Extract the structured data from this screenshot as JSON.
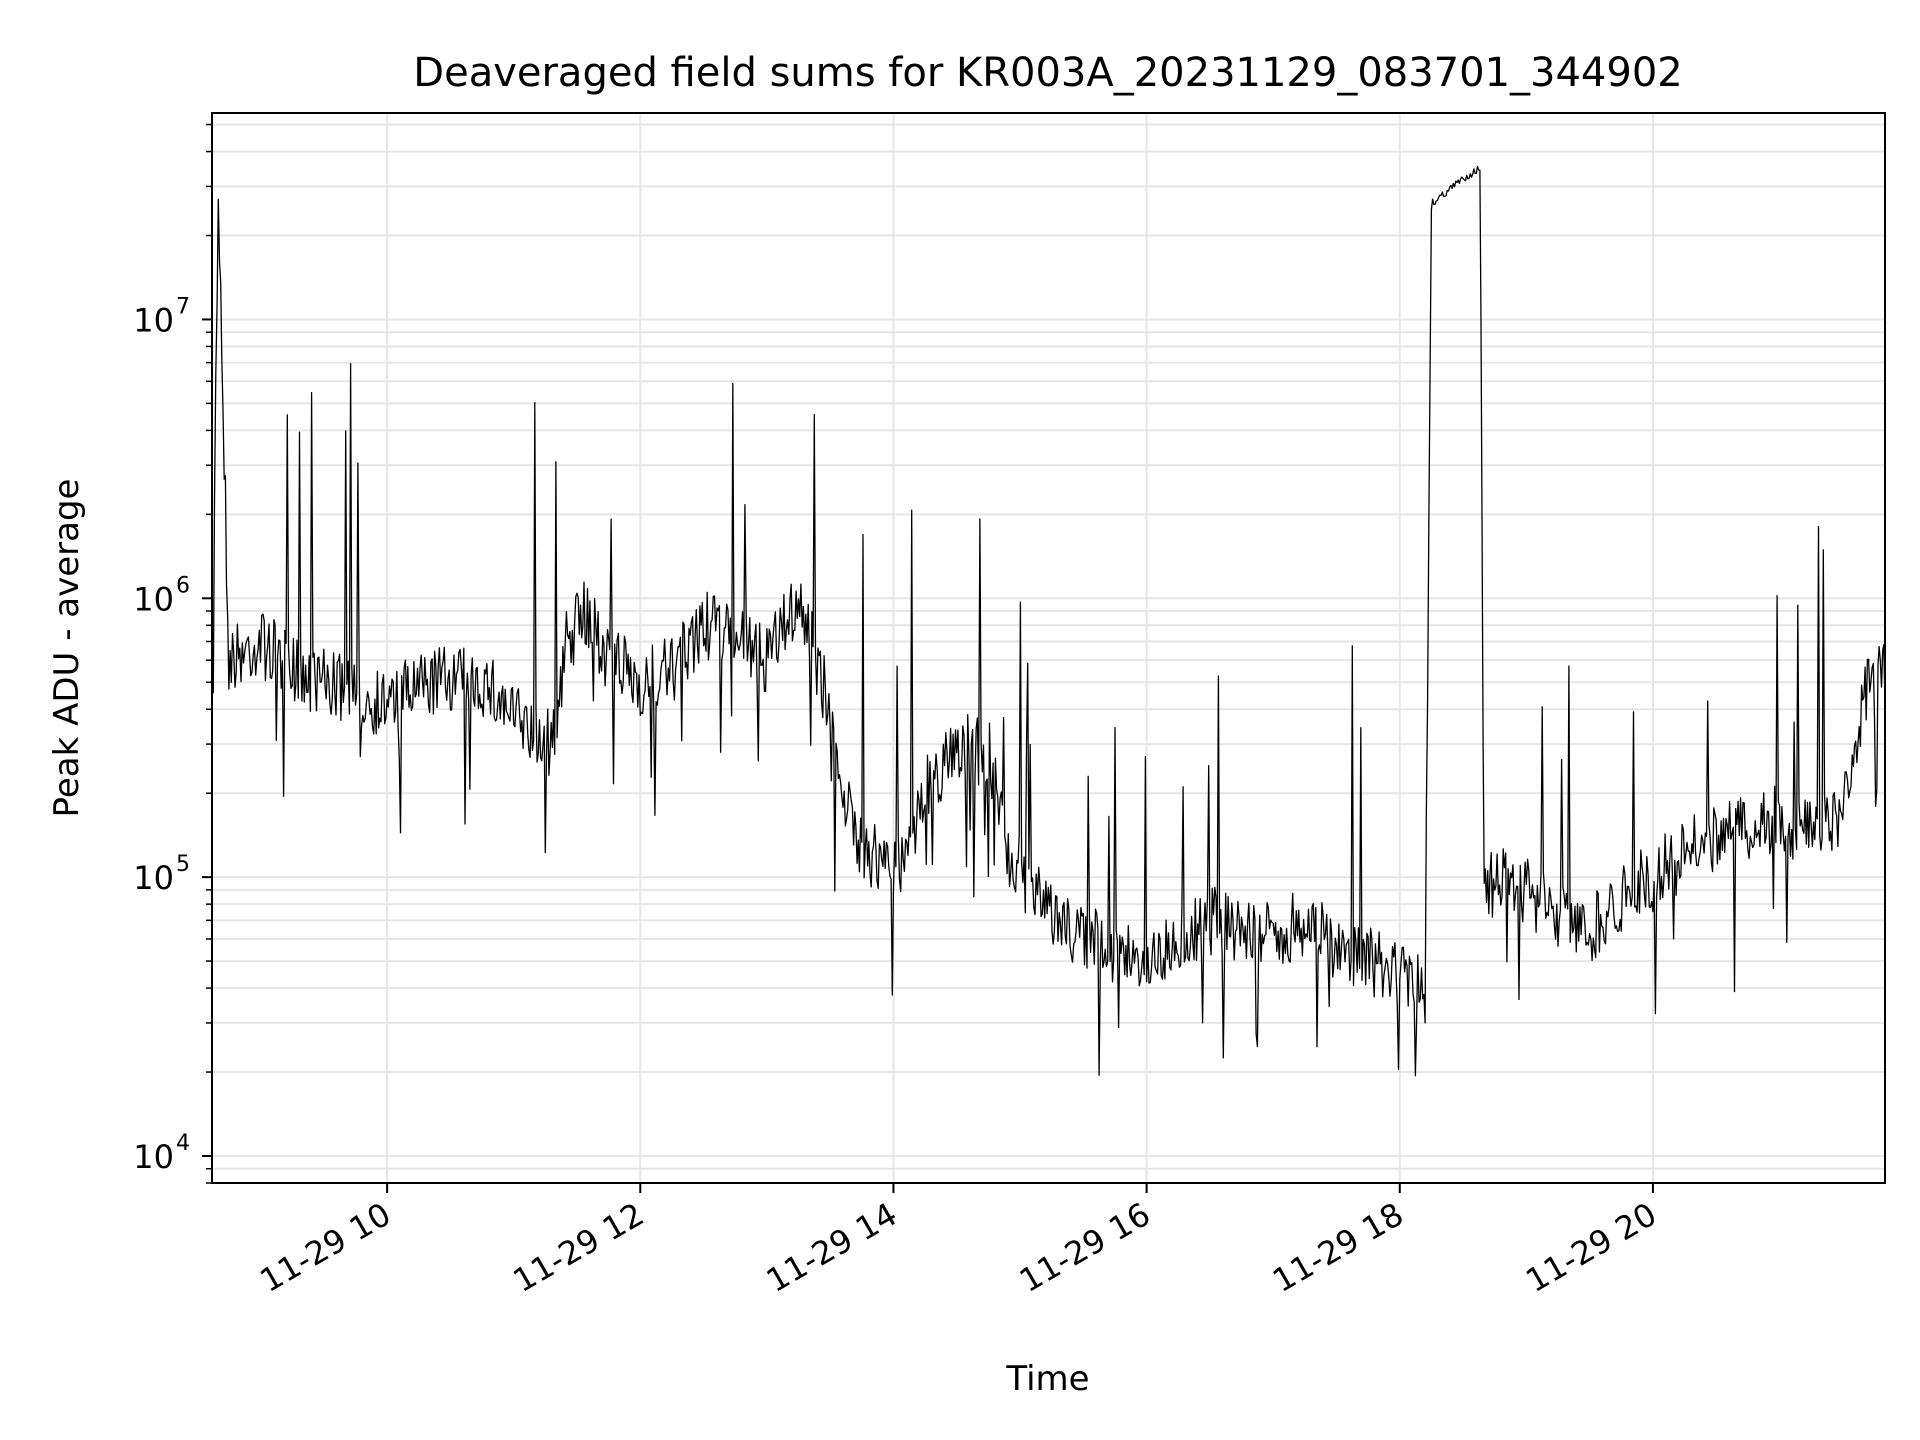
{
  "chart_data": {
    "type": "line",
    "title": "Deaveraged field sums for KR003A_20231129_083701_344902",
    "xlabel": "Time",
    "ylabel": "Peak ADU - average",
    "yscale": "log",
    "ylim": [
      8000,
      55000000
    ],
    "xlim": [
      "2023-11-29 08:37",
      "2023-11-29 21:50"
    ],
    "grid": true,
    "line_color": "#000000",
    "grid_color": "#e6e6e6",
    "x_ticks": [
      {
        "value": "2023-11-29 10:00",
        "label": "11-29 10"
      },
      {
        "value": "2023-11-29 12:00",
        "label": "11-29 12"
      },
      {
        "value": "2023-11-29 14:00",
        "label": "11-29 14"
      },
      {
        "value": "2023-11-29 16:00",
        "label": "11-29 16"
      },
      {
        "value": "2023-11-29 18:00",
        "label": "11-29 18"
      },
      {
        "value": "2023-11-29 20:00",
        "label": "11-29 20"
      }
    ],
    "y_ticks": [
      {
        "value": 10000,
        "base": "10",
        "exp": "4"
      },
      {
        "value": 100000,
        "base": "10",
        "exp": "5"
      },
      {
        "value": 1000000,
        "base": "10",
        "exp": "6"
      },
      {
        "value": 10000000,
        "base": "10",
        "exp": "7"
      }
    ],
    "series": [
      {
        "x": [
          "2023-11-29 08:37",
          "2023-11-29 08:40",
          "2023-11-29 08:45",
          "2023-11-29 09:00",
          "2023-11-29 09:15",
          "2023-11-29 09:30",
          "2023-11-29 09:45",
          "2023-11-29 10:00",
          "2023-11-29 10:15",
          "2023-11-29 10:30",
          "2023-11-29 10:45",
          "2023-11-29 11:00",
          "2023-11-29 11:10",
          "2023-11-29 11:20",
          "2023-11-29 11:25",
          "2023-11-29 11:35",
          "2023-11-29 11:45",
          "2023-11-29 12:00",
          "2023-11-29 12:15",
          "2023-11-29 12:30",
          "2023-11-29 12:45",
          "2023-11-29 13:00",
          "2023-11-29 13:15",
          "2023-11-29 13:30",
          "2023-11-29 13:40",
          "2023-11-29 13:50",
          "2023-11-29 14:00",
          "2023-11-29 14:15",
          "2023-11-29 14:30",
          "2023-11-29 14:45",
          "2023-11-29 14:55",
          "2023-11-29 15:10",
          "2023-11-29 15:30",
          "2023-11-29 15:45",
          "2023-11-29 16:00",
          "2023-11-29 16:15",
          "2023-11-29 16:30",
          "2023-11-29 16:45",
          "2023-11-29 17:00",
          "2023-11-29 17:15",
          "2023-11-29 17:30",
          "2023-11-29 17:45",
          "2023-11-29 18:00",
          "2023-11-29 18:12",
          "2023-11-29 18:15",
          "2023-11-29 18:30",
          "2023-11-29 18:38",
          "2023-11-29 18:40",
          "2023-11-29 18:45",
          "2023-11-29 19:00",
          "2023-11-29 19:15",
          "2023-11-29 19:30",
          "2023-11-29 19:45",
          "2023-11-29 20:00",
          "2023-11-29 20:15",
          "2023-11-29 20:30",
          "2023-11-29 20:45",
          "2023-11-29 21:00",
          "2023-11-29 21:15",
          "2023-11-29 21:30",
          "2023-11-29 21:40",
          "2023-11-29 21:50"
        ],
        "y": [
          500000,
          30000000,
          600000,
          700000,
          550000,
          500000,
          450000,
          420000,
          480000,
          520000,
          500000,
          380000,
          320000,
          300000,
          700000,
          900000,
          600000,
          500000,
          550000,
          800000,
          700000,
          600000,
          1000000,
          400000,
          150000,
          120000,
          100000,
          200000,
          300000,
          280000,
          120000,
          80000,
          60000,
          55000,
          50000,
          60000,
          70000,
          65000,
          60000,
          70000,
          55000,
          50000,
          45000,
          38000,
          26000000,
          32000000,
          35000000,
          80000,
          100000,
          90000,
          70000,
          65000,
          85000,
          100000,
          120000,
          140000,
          150000,
          160000,
          140000,
          160000,
          450000,
          550000
        ]
      }
    ]
  }
}
